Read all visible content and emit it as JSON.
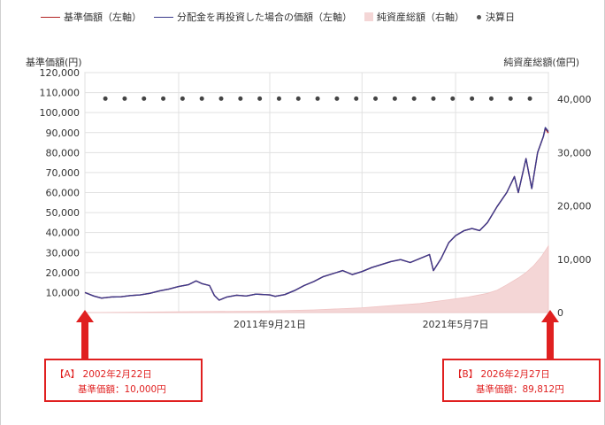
{
  "legend": {
    "items": [
      {
        "label": "基準価額（左軸）",
        "color": "#b22222",
        "kind": "line"
      },
      {
        "label": "分配金を再投資した場合の価額（左軸）",
        "color": "#3a3a8c",
        "kind": "line"
      },
      {
        "label": "純資産総額（右軸）",
        "color": "#f4d6d6",
        "kind": "area"
      },
      {
        "label": "決算日",
        "color": "#555555",
        "kind": "dot"
      }
    ]
  },
  "axes": {
    "left_title": "基準価額(円)",
    "right_title": "純資産総額(億円)"
  },
  "chart_data": {
    "type": "line",
    "y_left": {
      "ylim": [
        0,
        120000
      ],
      "ticks": [
        "120,000",
        "110,000",
        "100,000",
        "90,000",
        "80,000",
        "70,000",
        "60,000",
        "50,000",
        "40,000",
        "30,000",
        "20,000",
        "10,000"
      ]
    },
    "y_right": {
      "ylim": [
        0,
        45000
      ],
      "ticks": [
        "40,000",
        "30,000",
        "20,000",
        "10,000",
        "0"
      ]
    },
    "x_range": [
      2002.14,
      2026.16
    ],
    "x_tick_labels": [
      {
        "label": "2011年9月21日",
        "x": 2011.72
      },
      {
        "label": "2021年5月7日",
        "x": 2021.35
      }
    ],
    "x_gridlines": [
      2002.14,
      2007.0,
      2011.72,
      2016.5,
      2021.35,
      2026.16
    ],
    "series": [
      {
        "name": "基準価額（左軸）",
        "color": "#b22222",
        "points": [
          [
            2002.14,
            10000
          ],
          [
            2002.6,
            8300
          ],
          [
            2003.0,
            7200
          ],
          [
            2003.5,
            7800
          ],
          [
            2004.0,
            7900
          ],
          [
            2004.5,
            8500
          ],
          [
            2005.0,
            8800
          ],
          [
            2005.5,
            9600
          ],
          [
            2006.0,
            10800
          ],
          [
            2006.5,
            11800
          ],
          [
            2007.0,
            13000
          ],
          [
            2007.5,
            13900
          ],
          [
            2007.9,
            15800
          ],
          [
            2008.2,
            14500
          ],
          [
            2008.6,
            13500
          ],
          [
            2008.85,
            8500
          ],
          [
            2009.1,
            6200
          ],
          [
            2009.5,
            7800
          ],
          [
            2010.0,
            8700
          ],
          [
            2010.5,
            8300
          ],
          [
            2011.0,
            9200
          ],
          [
            2011.72,
            8800
          ],
          [
            2012.0,
            8100
          ],
          [
            2012.5,
            9000
          ],
          [
            2013.0,
            11000
          ],
          [
            2013.5,
            13500
          ],
          [
            2014.0,
            15500
          ],
          [
            2014.5,
            18000
          ],
          [
            2015.0,
            19500
          ],
          [
            2015.5,
            21000
          ],
          [
            2016.0,
            19000
          ],
          [
            2016.5,
            20500
          ],
          [
            2017.0,
            22500
          ],
          [
            2017.5,
            24000
          ],
          [
            2018.0,
            25500
          ],
          [
            2018.5,
            26500
          ],
          [
            2019.0,
            25000
          ],
          [
            2019.5,
            27000
          ],
          [
            2020.0,
            29000
          ],
          [
            2020.2,
            21000
          ],
          [
            2020.6,
            27000
          ],
          [
            2021.0,
            35000
          ],
          [
            2021.35,
            38500
          ],
          [
            2021.8,
            41000
          ],
          [
            2022.2,
            42000
          ],
          [
            2022.6,
            41000
          ],
          [
            2023.0,
            45000
          ],
          [
            2023.5,
            53000
          ],
          [
            2024.0,
            60000
          ],
          [
            2024.4,
            68000
          ],
          [
            2024.6,
            60000
          ],
          [
            2025.0,
            77000
          ],
          [
            2025.3,
            62000
          ],
          [
            2025.6,
            80000
          ],
          [
            2025.9,
            88000
          ],
          [
            2026.0,
            92000
          ],
          [
            2026.16,
            89812
          ]
        ]
      },
      {
        "name": "分配金を再投資した場合の価額（左軸）",
        "color": "#3a3a8c",
        "points": [
          [
            2002.14,
            10000
          ],
          [
            2002.6,
            8300
          ],
          [
            2003.0,
            7200
          ],
          [
            2003.5,
            7800
          ],
          [
            2004.0,
            7900
          ],
          [
            2004.5,
            8500
          ],
          [
            2005.0,
            8800
          ],
          [
            2005.5,
            9600
          ],
          [
            2006.0,
            10800
          ],
          [
            2006.5,
            11800
          ],
          [
            2007.0,
            13000
          ],
          [
            2007.5,
            13900
          ],
          [
            2007.9,
            15800
          ],
          [
            2008.2,
            14500
          ],
          [
            2008.6,
            13500
          ],
          [
            2008.85,
            8500
          ],
          [
            2009.1,
            6200
          ],
          [
            2009.5,
            7800
          ],
          [
            2010.0,
            8700
          ],
          [
            2010.5,
            8300
          ],
          [
            2011.0,
            9200
          ],
          [
            2011.72,
            8800
          ],
          [
            2012.0,
            8100
          ],
          [
            2012.5,
            9000
          ],
          [
            2013.0,
            11000
          ],
          [
            2013.5,
            13500
          ],
          [
            2014.0,
            15500
          ],
          [
            2014.5,
            18000
          ],
          [
            2015.0,
            19500
          ],
          [
            2015.5,
            21000
          ],
          [
            2016.0,
            19000
          ],
          [
            2016.5,
            20500
          ],
          [
            2017.0,
            22500
          ],
          [
            2017.5,
            24000
          ],
          [
            2018.0,
            25500
          ],
          [
            2018.5,
            26500
          ],
          [
            2019.0,
            25000
          ],
          [
            2019.5,
            27000
          ],
          [
            2020.0,
            29000
          ],
          [
            2020.2,
            21000
          ],
          [
            2020.6,
            27000
          ],
          [
            2021.0,
            35000
          ],
          [
            2021.35,
            38500
          ],
          [
            2021.8,
            41000
          ],
          [
            2022.2,
            42000
          ],
          [
            2022.6,
            41000
          ],
          [
            2023.0,
            45000
          ],
          [
            2023.5,
            53000
          ],
          [
            2024.0,
            60000
          ],
          [
            2024.4,
            68000
          ],
          [
            2024.6,
            60000
          ],
          [
            2025.0,
            77000
          ],
          [
            2025.3,
            62000
          ],
          [
            2025.6,
            80000
          ],
          [
            2025.9,
            88000
          ],
          [
            2026.0,
            92500
          ],
          [
            2026.16,
            90500
          ]
        ]
      },
      {
        "name": "純資産総額（右軸）",
        "color": "#f4d6d6",
        "type": "area",
        "points": [
          [
            2002.14,
            0
          ],
          [
            2005.0,
            80
          ],
          [
            2008.0,
            180
          ],
          [
            2011.0,
            250
          ],
          [
            2014.0,
            500
          ],
          [
            2016.5,
            900
          ],
          [
            2018.0,
            1300
          ],
          [
            2019.5,
            1700
          ],
          [
            2021.0,
            2400
          ],
          [
            2022.0,
            2900
          ],
          [
            2023.0,
            3600
          ],
          [
            2023.5,
            4200
          ],
          [
            2024.0,
            5200
          ],
          [
            2024.6,
            6500
          ],
          [
            2025.0,
            7500
          ],
          [
            2025.4,
            8800
          ],
          [
            2025.8,
            10500
          ],
          [
            2026.16,
            12500
          ]
        ]
      }
    ],
    "settlement_markers": {
      "name": "決算日",
      "y_value": 107000,
      "x": [
        2003.2,
        2004.2,
        2005.2,
        2006.2,
        2007.2,
        2008.2,
        2009.2,
        2010.2,
        2011.2,
        2012.2,
        2013.2,
        2014.2,
        2015.2,
        2016.2,
        2017.2,
        2018.2,
        2019.2,
        2020.2,
        2021.2,
        2022.2,
        2023.2,
        2024.2,
        2025.2
      ]
    }
  },
  "callouts": {
    "a": {
      "line1": "【A】 2002年2月22日",
      "line2": "基準価額：10,000円"
    },
    "b": {
      "line1": "【B】 2026年2月27日",
      "line2": "基準価額：89,812円"
    }
  }
}
